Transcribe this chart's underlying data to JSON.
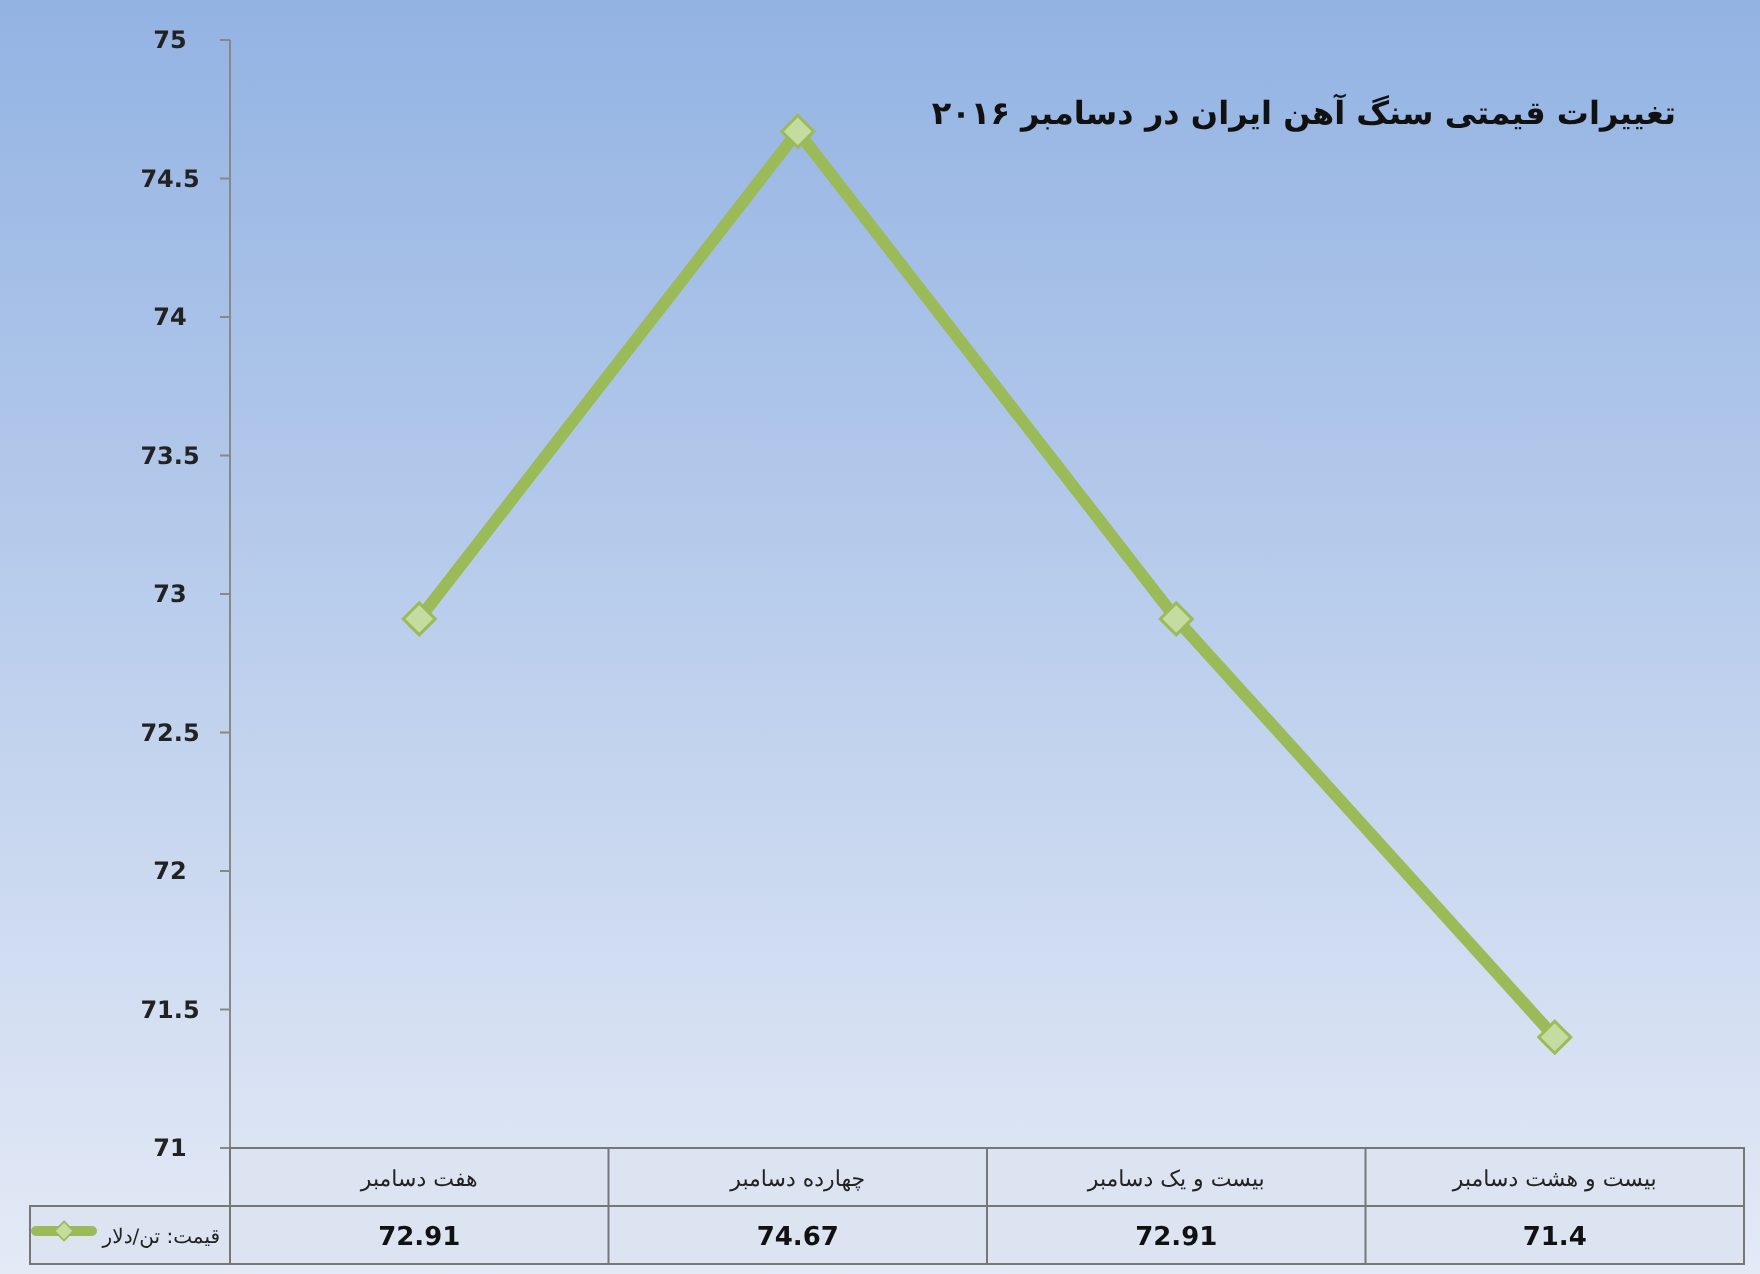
{
  "chart_data": {
    "type": "line",
    "title": "تغییرات قیمتی سنگ آهن ایران در دسامبر ۲۰۱۶",
    "categories": [
      "هفت دسامبر",
      "چهارده دسامبر",
      "بیست و یک دسامبر",
      "بیست و هشت دسامبر"
    ],
    "series": [
      {
        "name": "قیمت: تن/دلار",
        "color": "#9bbb59",
        "values": [
          72.91,
          74.67,
          72.91,
          71.4
        ]
      }
    ],
    "ylim": [
      71,
      75
    ],
    "yticks": [
      71,
      71.5,
      72,
      72.5,
      73,
      73.5,
      74,
      74.5,
      75
    ],
    "marker": "diamond",
    "line_style": "solid",
    "data_labels": true,
    "legend": "bottom",
    "grid": false
  }
}
